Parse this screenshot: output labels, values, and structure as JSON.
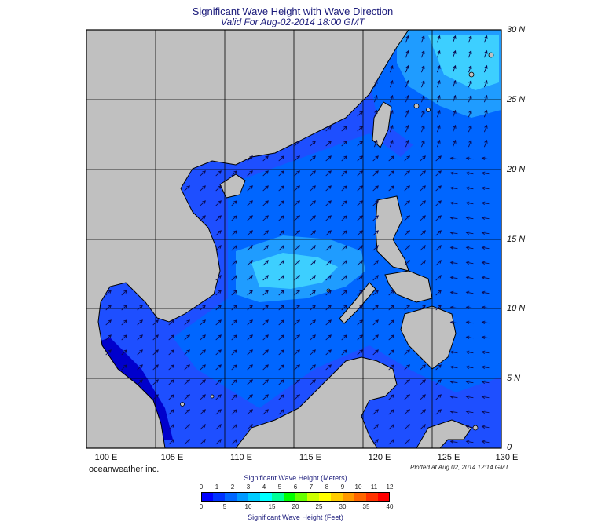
{
  "header": {
    "title": "Significant Wave Height with Wave Direction",
    "subtitle": "Valid For Aug-02-2014 18:00 GMT"
  },
  "axes": {
    "lat_labels": [
      "0",
      "5 N",
      "10 N",
      "15 N",
      "20 N",
      "25 N",
      "30 N"
    ],
    "lon_labels": [
      "100 E",
      "105 E",
      "110 E",
      "115 E",
      "120 E",
      "125 E",
      "130 E"
    ],
    "lat_range": [
      0,
      30
    ],
    "lon_range": [
      100,
      130
    ]
  },
  "footer": {
    "credit": "oceanweather inc.",
    "plotted": "Plotted at Aug 02, 2014 12:14 GMT"
  },
  "colorbar": {
    "title_meters": "Significant Wave Height (Meters)",
    "title_feet": "Significant Wave Height (Feet)",
    "meters_ticks": [
      "0",
      "1",
      "2",
      "3",
      "4",
      "5",
      "6",
      "7",
      "8",
      "9",
      "10",
      "11",
      "12"
    ],
    "feet_ticks": [
      "0",
      "5",
      "10",
      "15",
      "20",
      "25",
      "30",
      "35",
      "40"
    ],
    "colors": [
      "#0000ff",
      "#0033ff",
      "#0066ff",
      "#0099ff",
      "#00ccff",
      "#00ffff",
      "#00ff99",
      "#00ff00",
      "#66ff00",
      "#ccff00",
      "#ffff00",
      "#ffcc00",
      "#ff9900",
      "#ff6600",
      "#ff3300",
      "#ff0000"
    ]
  },
  "map_colors": {
    "land": "#c0c0c0",
    "sea_deep": "#1e4fff",
    "sea_mid": "#0066ff",
    "sea_light": "#1f9cff",
    "sea_bright": "#3dcfff",
    "arrow": "#0a0a50",
    "coast": "#000000"
  }
}
